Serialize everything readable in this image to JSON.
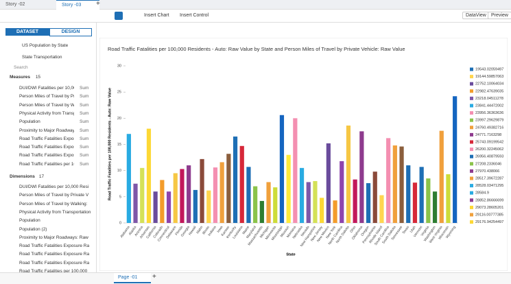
{
  "tabs": [
    "Story -02",
    "Story -03"
  ],
  "toolbar": {
    "insert_chart": "Insert Chart",
    "insert_control": "Insert Control",
    "dataview": "DataView",
    "preview": "Preview"
  },
  "sidebar": {
    "tabs": [
      "DATASET",
      "DESIGN"
    ],
    "datasets": [
      "US Population by State",
      "State Transportation"
    ],
    "search": "Search",
    "measures": {
      "title": "Measures",
      "count": 15,
      "items": [
        {
          "name": "DUI/DWI Fatalities per 10,00",
          "agg": "Sum"
        },
        {
          "name": "Person Miles of Travel by Pri",
          "agg": "Sum"
        },
        {
          "name": "Person Miles of Travel by Wa",
          "agg": "Sum"
        },
        {
          "name": "Physical Activity from Transp",
          "agg": "Sum"
        },
        {
          "name": "Population",
          "agg": "Sum"
        },
        {
          "name": "Proximity to Major Roadways",
          "agg": "Sum"
        },
        {
          "name": "Road Traffic Fatalities Expos",
          "agg": "Sum"
        },
        {
          "name": "Road Traffic Fatalities Expos",
          "agg": "Sum"
        },
        {
          "name": "Road Traffic Fatalities Expos",
          "agg": "Sum"
        },
        {
          "name": "Road Traffic Fatalities per 10",
          "agg": "Sum"
        }
      ]
    },
    "dimensions": {
      "title": "Dimensions",
      "count": 17,
      "items": [
        "DUI/DWI Fatalities per 10,000 Resi",
        "Person Miles of Travel by Private V",
        "Person Miles of Travel by Walking:",
        "Physical Activity from Transportation",
        "Population",
        "Population (2)",
        "Proximity to Major Roadways: Raw",
        "Road Traffic Fatalities Exposure Ra",
        "Road Traffic Fatalities Exposure Ra",
        "Road Traffic Fatalities Exposure Ra",
        "Road Traffic Fatalities per 100,000",
        "Road Traffic Fatalities per 100,000"
      ]
    }
  },
  "chart_data": {
    "type": "bar",
    "title": "Road Traffic Fatalities per 100,000 Residents - Auto: Raw Value by State and Person Miles of Travel by Private Vehicle: Raw Value",
    "y_label": "Road Traffic Fatalities per 100,000 Residents - Auto: Raw Value",
    "x_label": "State",
    "categories": [
      "Alabama",
      "Alaska",
      "Arizona",
      "Arkansas",
      "California",
      "Colorado",
      "Connecticut",
      "Delaware",
      "Florida",
      "Georgia",
      "Hawaii",
      "Idaho",
      "Illinois",
      "Indiana",
      "Iowa",
      "Kansas",
      "Kentucky",
      "Louisiana",
      "Maine",
      "Maryland",
      "Massachusetts",
      "Michigan",
      "Minnesota",
      "Mississippi",
      "Missouri",
      "Montana",
      "Nebraska",
      "Nevada",
      "New Hampshire",
      "New Jersey",
      "New Mexico",
      "New York",
      "North Carolina",
      "North Dakota",
      "Ohio",
      "Oklahoma",
      "Oregon",
      "Pennsylvania",
      "Rhode Island",
      "South Carolina",
      "South Dakota",
      "Tennessee",
      "Texas",
      "Utah",
      "Vermont",
      "Virginia",
      "Washington",
      "West Virginia",
      "Wisconsin",
      "Wyoming"
    ],
    "values": [
      17,
      7.5,
      10.5,
      18,
      6,
      8.2,
      6,
      9.5,
      10.3,
      11,
      6.3,
      12.2,
      6.2,
      10.6,
      11.6,
      13.2,
      16.5,
      14.7,
      10.7,
      7,
      4.2,
      7.8,
      6.8,
      20.6,
      13,
      20,
      10.5,
      7.8,
      8,
      4.8,
      15.2,
      4.3,
      11.8,
      18.6,
      8.3,
      17.5,
      7.6,
      9.8,
      5.3,
      16.2,
      14.8,
      14.6,
      11,
      7.7,
      10.7,
      8.5,
      6,
      17.6,
      9.3,
      24.2
    ],
    "palette": [
      "#29abe2",
      "#7e57a8",
      "#d4e157",
      "#fdd835",
      "#6a4c9c",
      "#f39c2b",
      "#8e44ad",
      "#f6c744",
      "#c2185b",
      "#8e3b8e",
      "#1e6fb5",
      "#8b4a3a",
      "#ffd54f",
      "#f48fb1",
      "#f0a03c",
      "#8b5e3c",
      "#1e6fb5",
      "#d62839",
      "#1e6fb5",
      "#8bc34a",
      "#2e7d32",
      "#f0a03c",
      "#cddc39",
      "#1565c0",
      "#ffeb3b",
      "#f48fb1"
    ],
    "ylim": [
      0,
      30
    ],
    "yticks": [
      0,
      5,
      10,
      15,
      20,
      25,
      30
    ],
    "legend": {
      "labels": [
        "19543.02059497",
        "19144.59857063",
        "22752.10064034",
        "22982.47639035",
        "23218.04511278",
        "23841.44472002",
        "23956.36363636",
        "23997.29629879",
        "24760.49382716",
        "24771.7163298",
        "25743.09199542",
        "26200.32245062",
        "26956.40879593",
        "27208.2336046",
        "27970.438066",
        "28517.39672287",
        "28528.03471295",
        "28584.9",
        "28852.86666699",
        "29073.28605201",
        "29116.00777385",
        "29176.94254497"
      ],
      "colors": [
        "#1e6fb5",
        "#ffd54f",
        "#6a4c9c",
        "#f39c2b",
        "#7e57a8",
        "#29abe2",
        "#f48fb1",
        "#8bc34a",
        "#f0a03c",
        "#8e3b8e",
        "#d62839",
        "#f48fb1",
        "#1e6fb5",
        "#8bc34a",
        "#8e3b8e",
        "#f0a03c",
        "#29abe2",
        "#29abe2",
        "#8e3b8e",
        "#fdd835",
        "#f0a03c",
        "#fdd835"
      ]
    }
  },
  "footer": {
    "page": "Page -01"
  }
}
